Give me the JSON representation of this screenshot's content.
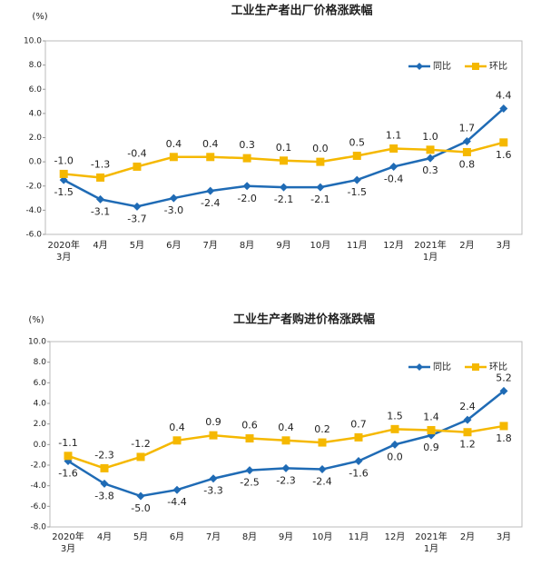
{
  "chart_data": [
    {
      "type": "line",
      "title": "工业生产者出厂价格涨跌幅",
      "unit": "(%)",
      "categories": [
        "2020年\n3月",
        "4月",
        "5月",
        "6月",
        "7月",
        "8月",
        "9月",
        "10月",
        "11月",
        "12月",
        "2021年\n1月",
        "2月",
        "3月"
      ],
      "series": [
        {
          "name": "同比",
          "color": "#1f6bb5",
          "marker": "diamond",
          "values": [
            -1.5,
            -3.1,
            -3.7,
            -3.0,
            -2.4,
            -2.0,
            -2.1,
            -2.1,
            -1.5,
            -0.4,
            0.3,
            1.7,
            4.4
          ],
          "value_labels": [
            "-1.5",
            "-3.1",
            "-3.7",
            "-3.0",
            "-2.4",
            "-2.0",
            "-2.1",
            "-2.1",
            "-1.5",
            "-0.4",
            "0.3",
            "1.7",
            "4.4"
          ]
        },
        {
          "name": "环比",
          "color": "#f5b800",
          "marker": "square",
          "values": [
            -1.0,
            -1.3,
            -0.4,
            0.4,
            0.4,
            0.3,
            0.1,
            0.0,
            0.5,
            1.1,
            1.0,
            0.8,
            1.6
          ],
          "value_labels": [
            "-1.0",
            "-1.3",
            "-0.4",
            "0.4",
            "0.4",
            "0.3",
            "0.1",
            "0.0",
            "0.5",
            "1.1",
            "1.0",
            "0.8",
            "1.6"
          ]
        }
      ],
      "ylim": [
        -6,
        10
      ],
      "yticks": [
        {
          "value": -6,
          "label": "-6.0"
        },
        {
          "value": -4,
          "label": "-4.0"
        },
        {
          "value": -2,
          "label": "-2.0"
        },
        {
          "value": 0,
          "label": "0.0"
        },
        {
          "value": 2,
          "label": "2.0"
        },
        {
          "value": 4,
          "label": "4.0"
        },
        {
          "value": 6,
          "label": "6.0"
        },
        {
          "value": 8,
          "label": "8.0"
        },
        {
          "value": 10,
          "label": "10.0"
        }
      ],
      "grid": false,
      "legend": "upper right"
    },
    {
      "type": "line",
      "title": "工业生产者购进价格涨跌幅",
      "unit": "(%)",
      "categories": [
        "2020年\n3月",
        "4月",
        "5月",
        "6月",
        "7月",
        "8月",
        "9月",
        "10月",
        "11月",
        "12月",
        "2021年\n1月",
        "2月",
        "3月"
      ],
      "series": [
        {
          "name": "同比",
          "color": "#1f6bb5",
          "marker": "diamond",
          "values": [
            -1.6,
            -3.8,
            -5.0,
            -4.4,
            -3.3,
            -2.5,
            -2.3,
            -2.4,
            -1.6,
            0.0,
            0.9,
            2.4,
            5.2
          ],
          "value_labels": [
            "-1.6",
            "-3.8",
            "-5.0",
            "-4.4",
            "-3.3",
            "-2.5",
            "-2.3",
            "-2.4",
            "-1.6",
            "0.0",
            "0.9",
            "2.4",
            "5.2"
          ]
        },
        {
          "name": "环比",
          "color": "#f5b800",
          "marker": "square",
          "values": [
            -1.1,
            -2.3,
            -1.2,
            0.4,
            0.9,
            0.6,
            0.4,
            0.2,
            0.7,
            1.5,
            1.4,
            1.2,
            1.8
          ],
          "value_labels": [
            "-1.1",
            "-2.3",
            "-1.2",
            "0.4",
            "0.9",
            "0.6",
            "0.4",
            "0.2",
            "0.7",
            "1.5",
            "1.4",
            "1.2",
            "1.8"
          ]
        }
      ],
      "ylim": [
        -8,
        10
      ],
      "yticks": [
        {
          "value": -8,
          "label": "-8.0"
        },
        {
          "value": -6,
          "label": "-6.0"
        },
        {
          "value": -4,
          "label": "-4.0"
        },
        {
          "value": -2,
          "label": "-2.0"
        },
        {
          "value": 0,
          "label": "0.0"
        },
        {
          "value": 2,
          "label": "2.0"
        },
        {
          "value": 4,
          "label": "4.0"
        },
        {
          "value": 6,
          "label": "6.0"
        },
        {
          "value": 8,
          "label": "8.0"
        },
        {
          "value": 10,
          "label": "10.0"
        }
      ],
      "grid": false,
      "legend": "upper right"
    }
  ]
}
